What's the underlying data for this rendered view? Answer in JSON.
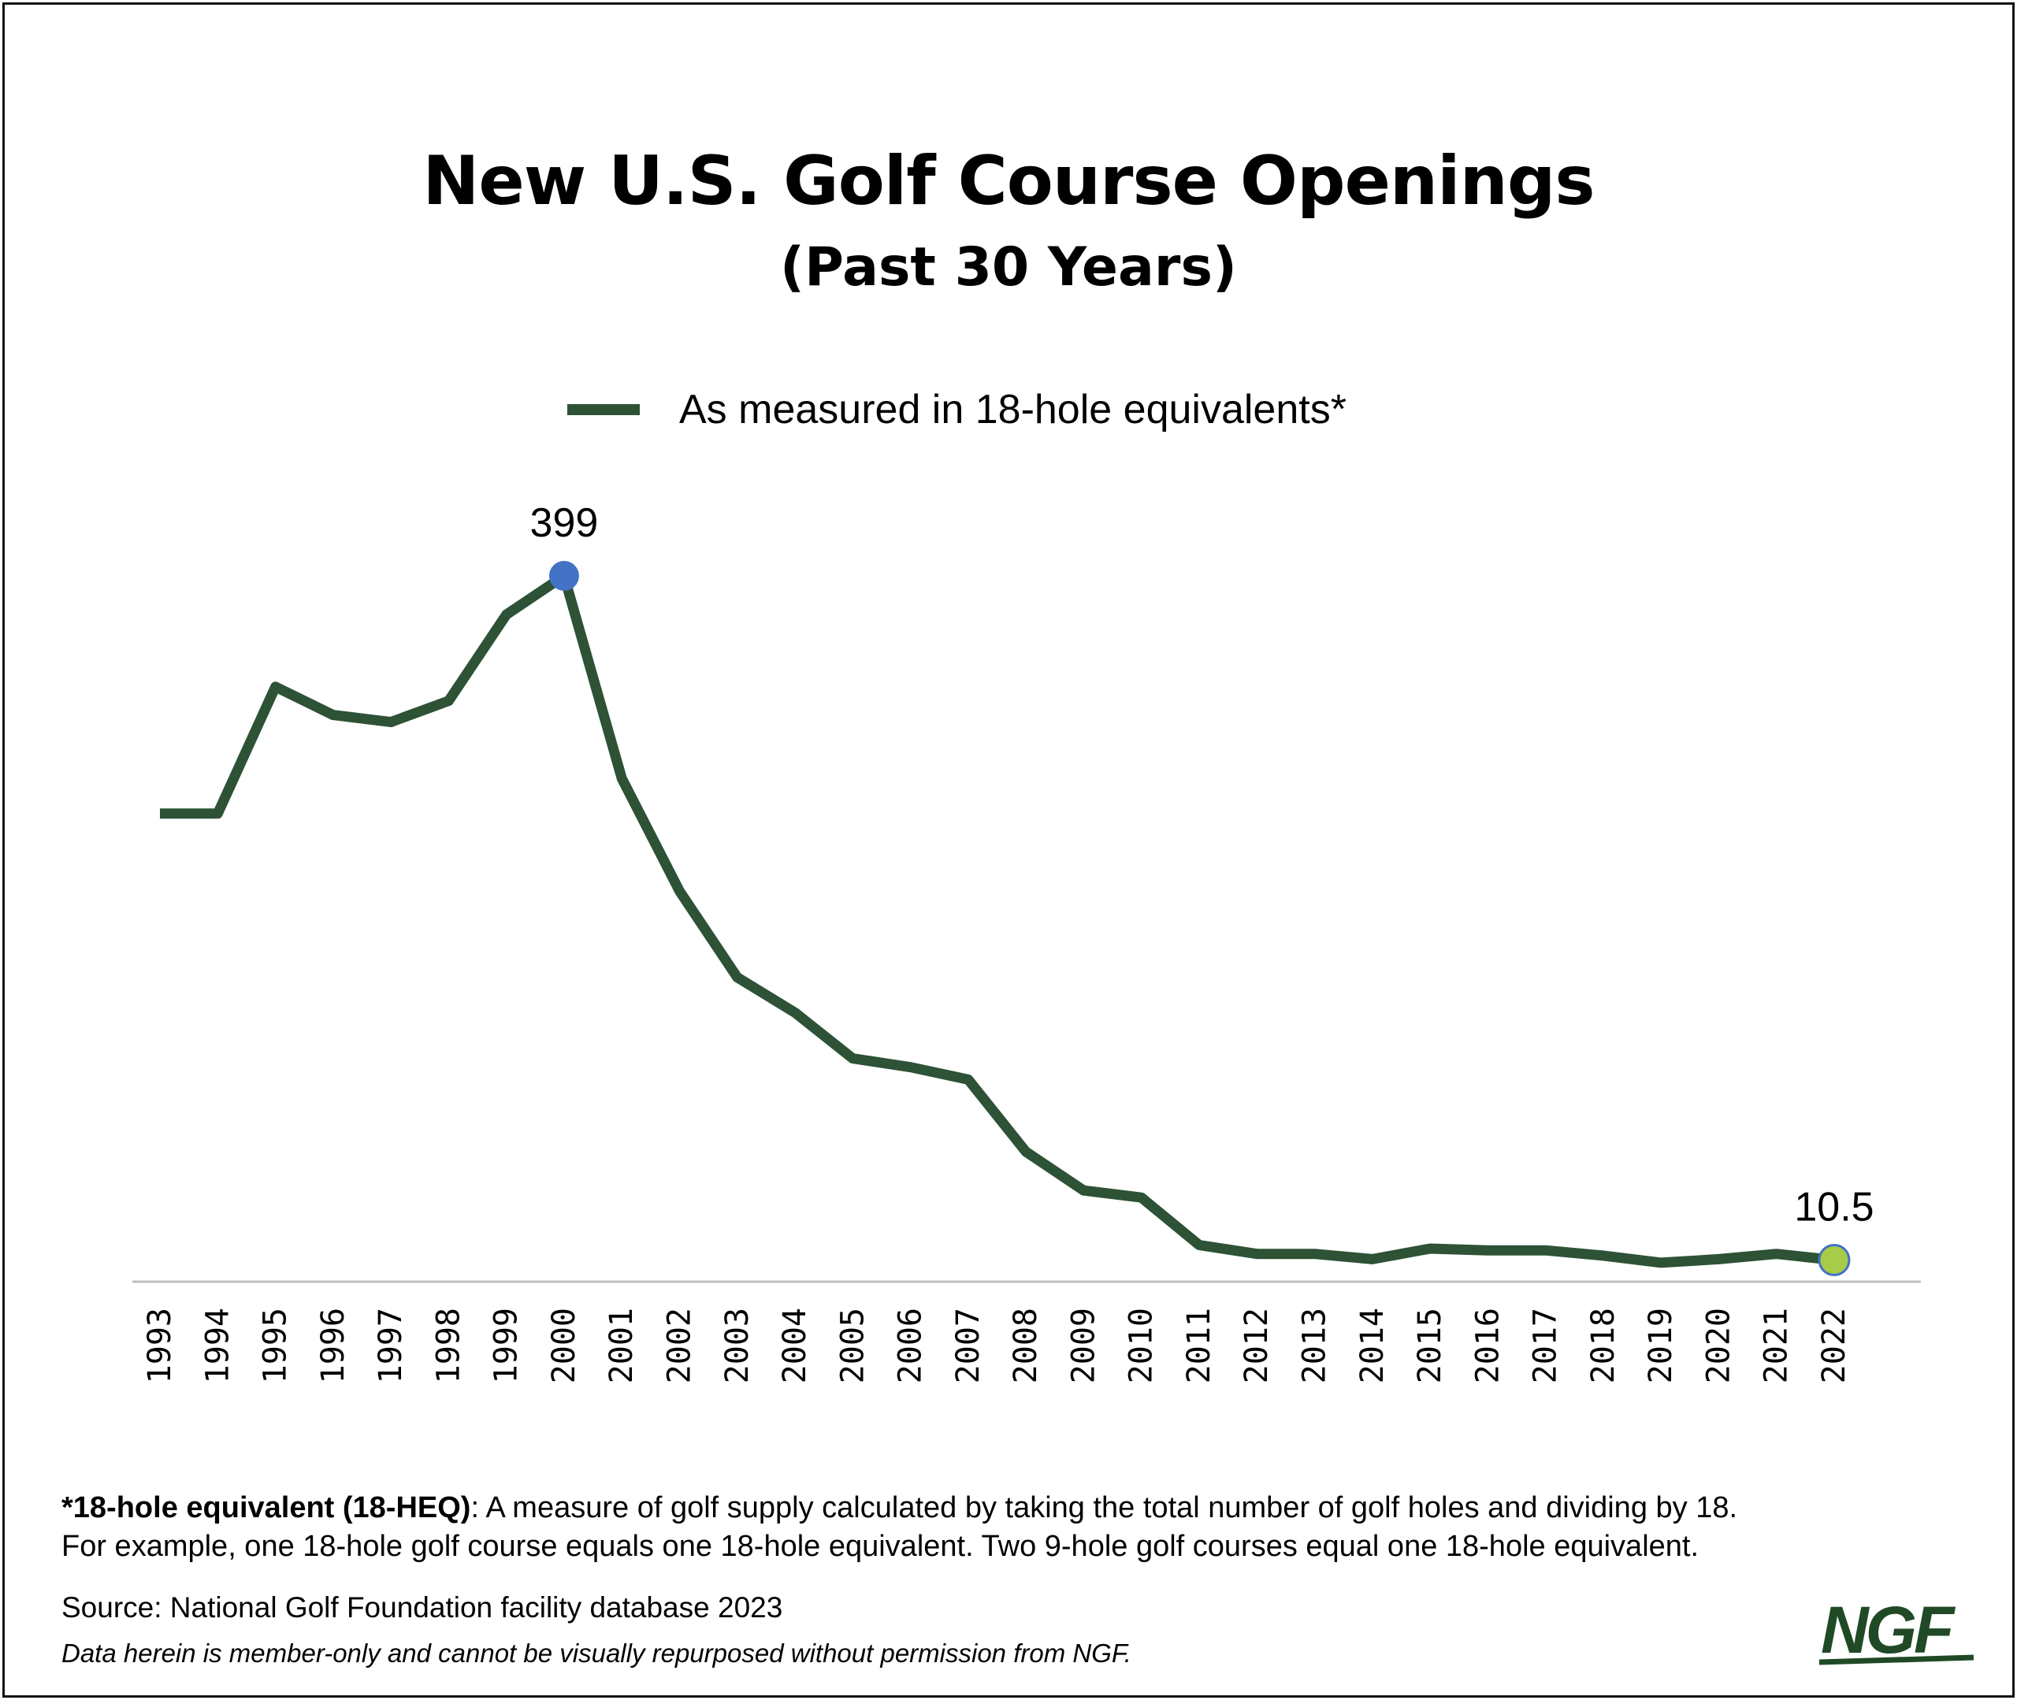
{
  "header": {
    "title": "New U.S. Golf Course Openings",
    "subtitle": "(Past 30 Years)"
  },
  "legend": {
    "label": "As measured in 18-hole equivalents*"
  },
  "footnote": {
    "term": "*18-hole equivalent (18-HEQ)",
    "line1": ": A measure of golf supply calculated by taking the total number of golf holes and dividing by 18.",
    "line2": "For example, one 18-hole golf course equals one 18-hole equivalent. Two 9-hole golf courses equal one 18-hole equivalent."
  },
  "source": "Source: National Golf Foundation facility database 2023",
  "disclaimer": "Data herein is member-only and cannot be visually repurposed without permission from NGF.",
  "logo": {
    "text": "NGF"
  },
  "colors": {
    "line": "#2d5236",
    "peak_marker": "#4472c4",
    "end_marker": "#a6cc4a",
    "axis": "#bfbfbf",
    "frame": "#111111",
    "logo": "#1f4a25"
  },
  "chart_data": {
    "type": "line",
    "title": "New U.S. Golf Course Openings",
    "subtitle": "(Past 30 Years)",
    "categories": [
      "1993",
      "1994",
      "1995",
      "1996",
      "1997",
      "1998",
      "1999",
      "2000",
      "2001",
      "2002",
      "2003",
      "2004",
      "2005",
      "2006",
      "2007",
      "2008",
      "2009",
      "2010",
      "2011",
      "2012",
      "2013",
      "2014",
      "2015",
      "2016",
      "2017",
      "2018",
      "2019",
      "2020",
      "2021",
      "2022"
    ],
    "series": [
      {
        "name": "As measured in 18-hole equivalents*",
        "values": [
          264,
          264,
          336,
          320,
          316,
          328,
          377,
          399,
          284,
          220,
          171,
          151,
          125,
          120,
          113,
          72,
          50,
          46,
          19,
          14,
          14,
          11,
          17,
          16,
          16,
          13,
          9,
          11,
          14,
          10.5
        ]
      }
    ],
    "annotations": [
      {
        "category": "2000",
        "label": "399"
      },
      {
        "category": "2022",
        "label": "10.5"
      }
    ],
    "ylim": [
      0,
      410
    ],
    "grid": false,
    "legend_position": "top-center",
    "xlabel": "",
    "ylabel": ""
  }
}
